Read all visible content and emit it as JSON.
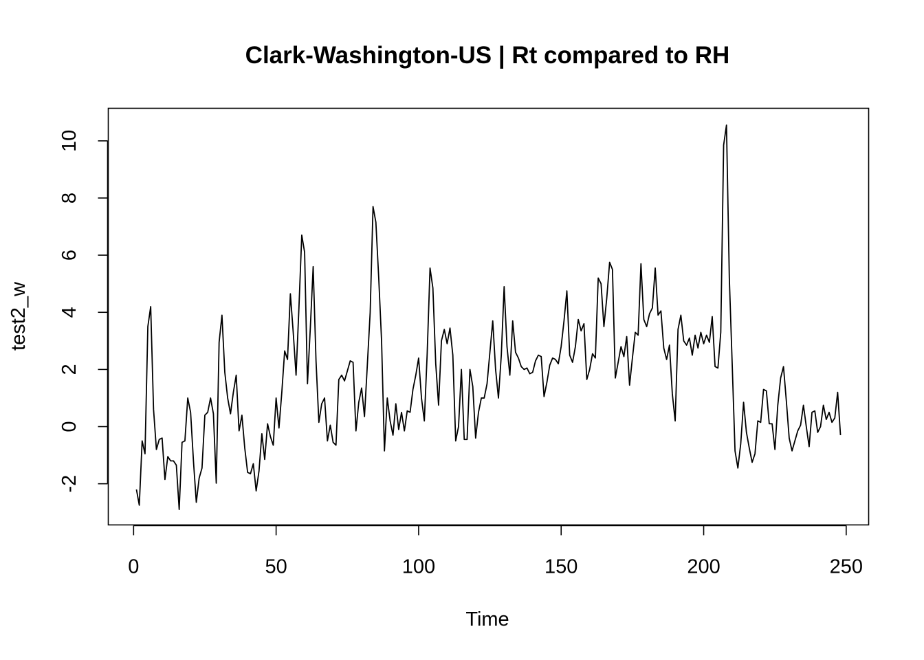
{
  "chart_data": {
    "type": "line",
    "title": "Clark-Washington-US | Rt compared to RH",
    "xlabel": "Time",
    "ylabel": "test2_w",
    "xlim": [
      1,
      248
    ],
    "ylim": [
      -2.9,
      10.6
    ],
    "xticks": [
      0,
      50,
      100,
      150,
      200,
      250
    ],
    "yticks": [
      -2,
      0,
      2,
      4,
      6,
      8,
      10
    ],
    "xtick_labels": [
      "0",
      "50",
      "100",
      "150",
      "200",
      "250"
    ],
    "ytick_labels": [
      "-2",
      "0",
      "2",
      "4",
      "6",
      "8",
      "10"
    ],
    "grid": false,
    "legend": "none",
    "line_color": "#000000",
    "series": [
      {
        "x_start": 1,
        "values": [
          -2.2,
          -2.75,
          -0.5,
          -0.95,
          3.5,
          4.2,
          0.6,
          -0.8,
          -0.45,
          -0.4,
          -1.85,
          -1.05,
          -1.2,
          -1.2,
          -1.35,
          -2.9,
          -0.55,
          -0.5,
          1.0,
          0.5,
          -1.2,
          -2.65,
          -1.8,
          -1.45,
          0.4,
          0.5,
          1.0,
          0.45,
          -1.98,
          2.95,
          3.9,
          1.9,
          1.0,
          0.45,
          1.2,
          1.8,
          -0.15,
          0.4,
          -0.75,
          -1.6,
          -1.65,
          -1.3,
          -2.25,
          -1.55,
          -0.25,
          -1.15,
          0.1,
          -0.35,
          -0.65,
          1.0,
          -0.05,
          1.2,
          2.65,
          2.35,
          4.65,
          3.3,
          1.8,
          4.15,
          6.7,
          6.1,
          1.5,
          3.45,
          5.6,
          2.3,
          0.15,
          0.8,
          1.0,
          -0.5,
          0.05,
          -0.55,
          -0.65,
          1.65,
          1.8,
          1.6,
          1.95,
          2.3,
          2.25,
          -0.15,
          0.85,
          1.35,
          0.35,
          2.15,
          4.0,
          7.7,
          7.15,
          5.2,
          3.0,
          -0.85,
          1.0,
          0.2,
          -0.3,
          0.8,
          -0.1,
          0.5,
          -0.15,
          0.55,
          0.5,
          1.3,
          1.8,
          2.4,
          1.0,
          0.2,
          2.55,
          5.55,
          4.85,
          2.2,
          0.75,
          3.0,
          3.4,
          2.9,
          3.45,
          2.5,
          -0.5,
          0.0,
          2.0,
          -0.45,
          -0.45,
          2.0,
          1.4,
          -0.4,
          0.5,
          1.0,
          1.0,
          1.5,
          2.6,
          3.7,
          2.0,
          1.0,
          2.5,
          4.9,
          2.8,
          1.8,
          3.7,
          2.6,
          2.4,
          2.1,
          2.0,
          2.05,
          1.85,
          1.9,
          2.3,
          2.5,
          2.45,
          1.05,
          1.55,
          2.15,
          2.4,
          2.35,
          2.2,
          2.8,
          3.7,
          4.75,
          2.5,
          2.25,
          2.8,
          3.75,
          3.35,
          3.6,
          1.65,
          2.0,
          2.55,
          2.4,
          5.2,
          5.0,
          3.5,
          4.5,
          5.75,
          5.5,
          1.7,
          2.25,
          2.8,
          2.45,
          3.15,
          1.45,
          2.4,
          3.3,
          3.2,
          5.7,
          3.75,
          3.5,
          3.95,
          4.15,
          5.55,
          3.9,
          4.05,
          2.75,
          2.35,
          2.85,
          1.15,
          0.2,
          3.4,
          3.9,
          3.0,
          2.85,
          3.1,
          2.5,
          3.2,
          2.75,
          3.3,
          2.9,
          3.2,
          2.95,
          3.85,
          2.1,
          2.05,
          3.3,
          9.85,
          10.55,
          5.2,
          2.2,
          -0.85,
          -1.45,
          -0.6,
          0.85,
          -0.2,
          -0.75,
          -1.25,
          -0.95,
          0.2,
          0.15,
          1.3,
          1.25,
          0.1,
          0.1,
          -0.8,
          0.75,
          1.7,
          2.1,
          0.9,
          -0.4,
          -0.85,
          -0.5,
          -0.15,
          0.05,
          0.75,
          0.0,
          -0.7,
          0.5,
          0.55,
          -0.2,
          0.0,
          0.75,
          0.25,
          0.5,
          0.15,
          0.3,
          1.2,
          -0.3
        ]
      }
    ]
  }
}
